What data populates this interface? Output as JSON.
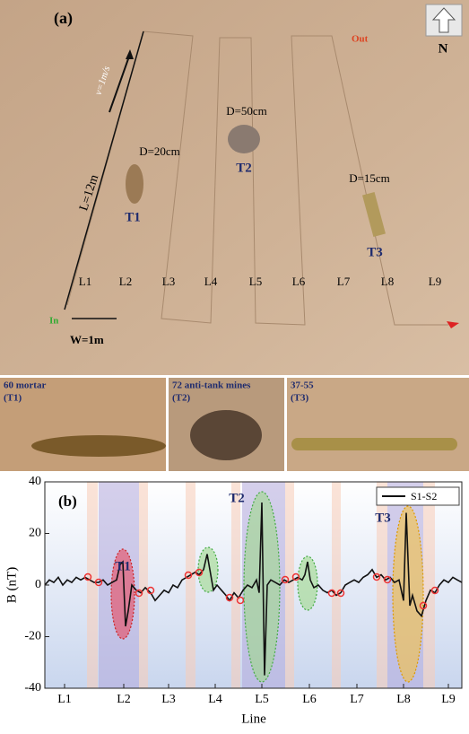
{
  "panel_a": {
    "label": "(a)",
    "north": "N",
    "out": "Out",
    "in": "In",
    "length": "L=12m",
    "speed": "v=1m/s",
    "width": "W=1m",
    "lines": [
      "L1",
      "L2",
      "L3",
      "L4",
      "L5",
      "L6",
      "L7",
      "L8",
      "L9"
    ],
    "targets": [
      {
        "name": "T1",
        "diameter": "D=20cm"
      },
      {
        "name": "T2",
        "diameter": "D=50cm"
      },
      {
        "name": "T3",
        "diameter": "D=15cm"
      }
    ],
    "photos": [
      {
        "title": "60 mortar",
        "target": "(T1)"
      },
      {
        "title": "72 anti-tank mines",
        "target": "(T2)"
      },
      {
        "title": "37-55",
        "target": "(T3)"
      }
    ]
  },
  "chart_data": {
    "type": "line",
    "panel_label": "(b)",
    "ylabel": "B (nT)",
    "xlabel": "Line",
    "annotations": [
      "T1",
      "T2",
      "T3"
    ],
    "xlim": [
      0,
      465
    ],
    "ylim": [
      -40,
      40
    ],
    "yticks": [
      -40,
      -20,
      0,
      20,
      40
    ],
    "xticks": [
      {
        "value": 22,
        "label": "L1"
      },
      {
        "value": 88,
        "label": "L2"
      },
      {
        "value": 138,
        "label": "L3"
      },
      {
        "value": 190,
        "label": "L4"
      },
      {
        "value": 242,
        "label": "L5"
      },
      {
        "value": 295,
        "label": "L6"
      },
      {
        "value": 348,
        "label": "L7"
      },
      {
        "value": 400,
        "label": "L8"
      },
      {
        "value": 450,
        "label": "L9"
      }
    ],
    "x": [
      0,
      5,
      10,
      15,
      20,
      25,
      30,
      35,
      40,
      45,
      50,
      55,
      60,
      65,
      70,
      75,
      80,
      84,
      87,
      90,
      93,
      97,
      102,
      107,
      112,
      118,
      123,
      128,
      133,
      138,
      143,
      148,
      153,
      158,
      163,
      168,
      172,
      177,
      181,
      185,
      188,
      192,
      197,
      202,
      206,
      211,
      216,
      221,
      226,
      231,
      236,
      239,
      242,
      245,
      248,
      252,
      257,
      262,
      267,
      272,
      277,
      282,
      287,
      290,
      293,
      296,
      300,
      305,
      310,
      315,
      320,
      325,
      330,
      335,
      340,
      345,
      350,
      355,
      360,
      365,
      370,
      375,
      380,
      385,
      390,
      395,
      400,
      403,
      407,
      410,
      415,
      420,
      425,
      430,
      435,
      440,
      445,
      450,
      455,
      460,
      465
    ],
    "series": [
      {
        "name": "S1-S2",
        "color": "#111111",
        "values": [
          0,
          2,
          1,
          3,
          0,
          2,
          1,
          3,
          2,
          3,
          2,
          1,
          1,
          2,
          0,
          1,
          2,
          8,
          9,
          -16,
          -10,
          0,
          -2,
          -3,
          -1,
          -3,
          -6,
          -4,
          -2,
          -3,
          0,
          -1,
          2,
          3,
          4,
          5,
          4,
          6,
          12,
          4,
          -2,
          0,
          -2,
          -4,
          -6,
          -3,
          -5,
          -2,
          0,
          -1,
          2,
          -3,
          32,
          -35,
          0,
          2,
          1,
          0,
          2,
          1,
          2,
          3,
          2,
          4,
          9,
          2,
          -1,
          0,
          -2,
          -3,
          -2,
          -4,
          -3,
          0,
          1,
          2,
          1,
          3,
          4,
          6,
          3,
          4,
          2,
          3,
          1,
          2,
          -6,
          28,
          -8,
          -4,
          -10,
          -12,
          -6,
          -2,
          -3,
          0,
          2,
          1,
          3,
          2,
          1
        ]
      }
    ]
  }
}
